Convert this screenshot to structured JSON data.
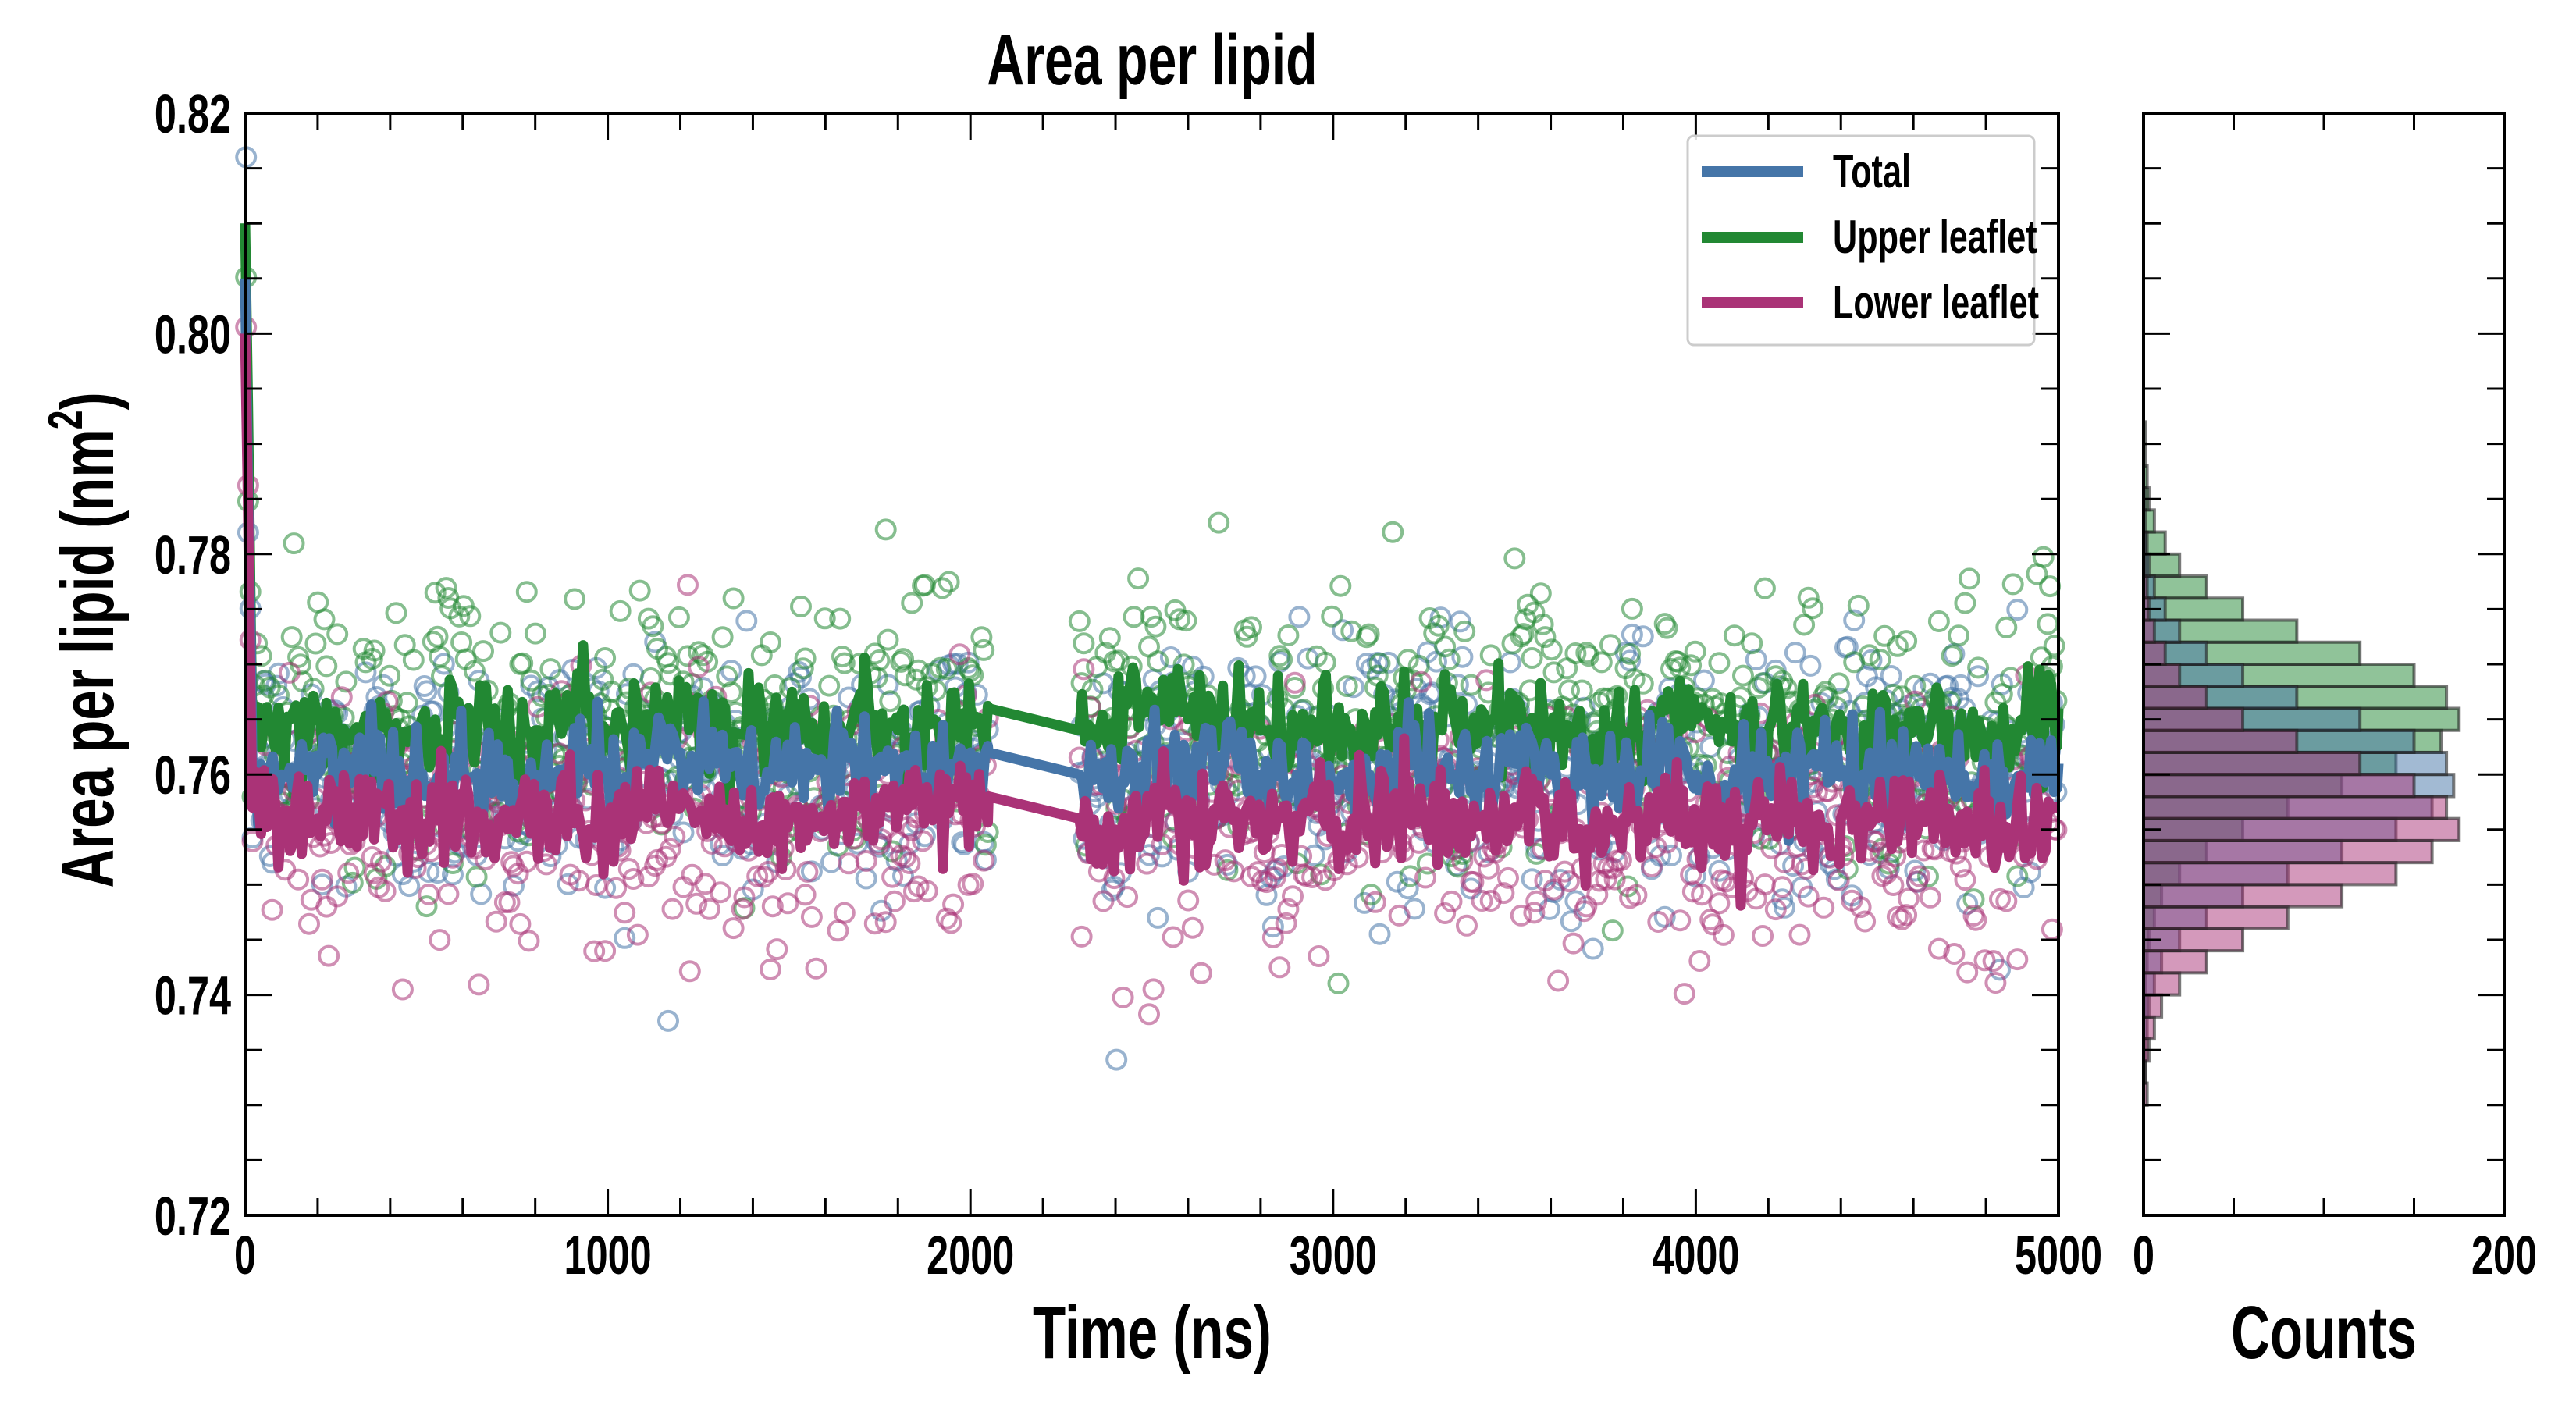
{
  "chart_data": [
    {
      "type": "line",
      "title": "Area per lipid",
      "xlabel": "Time (ns)",
      "ylabel": "Area per lipid (nm",
      "ylabel_sup": "2",
      "ylabel_close": ")",
      "xlim": [
        0,
        5000
      ],
      "ylim": [
        0.72,
        0.82
      ],
      "xticks": [
        0,
        1000,
        2000,
        3000,
        4000,
        5000
      ],
      "xtick_labels": [
        "0",
        "1000",
        "2000",
        "3000",
        "4000",
        "5000"
      ],
      "yticks": [
        0.72,
        0.74,
        0.76,
        0.78,
        0.8,
        0.82
      ],
      "ytick_labels": [
        "0.72",
        "0.74",
        "0.76",
        "0.78",
        "0.80",
        "0.82"
      ],
      "legend_position": "top-right",
      "x": [
        0,
        20,
        100,
        200,
        300,
        400,
        500,
        600,
        700,
        800,
        900,
        1000,
        1100,
        1200,
        1300,
        1400,
        1500,
        1600,
        1700,
        1800,
        1900,
        2000,
        2050,
        2300,
        2400,
        2500,
        2600,
        2700,
        2800,
        2900,
        3000,
        3100,
        3200,
        3300,
        3400,
        3500,
        3600,
        3700,
        3800,
        3900,
        4000,
        4100,
        4200,
        4300,
        4400,
        4500,
        4600,
        4700,
        4800,
        4900,
        5000
      ],
      "series": [
        {
          "name": "Total",
          "color": "#4575a8",
          "values": [
            0.805,
            0.761,
            0.76,
            0.76,
            0.761,
            0.76,
            0.759,
            0.761,
            0.76,
            0.76,
            0.761,
            0.76,
            0.761,
            0.762,
            0.761,
            0.76,
            0.761,
            0.76,
            0.761,
            0.76,
            0.761,
            0.762,
            0.762,
            0.76,
            0.759,
            0.762,
            0.76,
            0.761,
            0.76,
            0.76,
            0.759,
            0.76,
            0.761,
            0.76,
            0.76,
            0.761,
            0.76,
            0.759,
            0.76,
            0.761,
            0.76,
            0.759,
            0.76,
            0.761,
            0.76,
            0.76,
            0.761,
            0.76,
            0.759,
            0.76,
            0.761
          ]
        },
        {
          "name": "Upper leaflet",
          "color": "#228833",
          "values": [
            0.81,
            0.764,
            0.764,
            0.765,
            0.764,
            0.764,
            0.763,
            0.765,
            0.764,
            0.764,
            0.765,
            0.764,
            0.765,
            0.766,
            0.765,
            0.764,
            0.765,
            0.764,
            0.765,
            0.764,
            0.765,
            0.766,
            0.766,
            0.764,
            0.764,
            0.767,
            0.765,
            0.765,
            0.764,
            0.764,
            0.764,
            0.764,
            0.765,
            0.764,
            0.764,
            0.765,
            0.764,
            0.763,
            0.764,
            0.765,
            0.765,
            0.763,
            0.764,
            0.765,
            0.764,
            0.764,
            0.765,
            0.764,
            0.763,
            0.764,
            0.766
          ]
        },
        {
          "name": "Lower leaflet",
          "color": "#aa3377",
          "values": [
            0.8,
            0.757,
            0.756,
            0.756,
            0.757,
            0.756,
            0.755,
            0.757,
            0.756,
            0.756,
            0.757,
            0.756,
            0.757,
            0.757,
            0.756,
            0.755,
            0.756,
            0.756,
            0.757,
            0.756,
            0.757,
            0.758,
            0.758,
            0.756,
            0.755,
            0.757,
            0.756,
            0.756,
            0.756,
            0.756,
            0.755,
            0.756,
            0.757,
            0.756,
            0.756,
            0.757,
            0.756,
            0.755,
            0.756,
            0.756,
            0.756,
            0.754,
            0.756,
            0.757,
            0.756,
            0.756,
            0.757,
            0.756,
            0.755,
            0.756,
            0.757
          ]
        }
      ],
      "scatter_spread_sd": 0.007
    },
    {
      "type": "bar",
      "orientation": "horizontal",
      "xlabel": "Counts",
      "xlim": [
        0,
        200
      ],
      "xtick_labels": [
        "0",
        "200"
      ],
      "ylim": [
        0.72,
        0.82
      ],
      "bin_centers": [
        0.731,
        0.733,
        0.735,
        0.737,
        0.739,
        0.741,
        0.743,
        0.745,
        0.747,
        0.749,
        0.751,
        0.753,
        0.755,
        0.757,
        0.759,
        0.761,
        0.763,
        0.765,
        0.767,
        0.769,
        0.771,
        0.773,
        0.775,
        0.777,
        0.779,
        0.781,
        0.783,
        0.785,
        0.787,
        0.789,
        0.791,
        0.793
      ],
      "series": [
        {
          "name": "Upper leaflet",
          "color": "#228833",
          "values": [
            0,
            0,
            0,
            0,
            1,
            1,
            2,
            3,
            6,
            10,
            20,
            35,
            55,
            80,
            110,
            140,
            165,
            175,
            168,
            150,
            120,
            85,
            55,
            35,
            20,
            12,
            6,
            3,
            2,
            1,
            1,
            0
          ]
        },
        {
          "name": "Total",
          "color": "#4575a8",
          "values": [
            0,
            1,
            1,
            2,
            3,
            6,
            10,
            20,
            35,
            55,
            80,
            110,
            140,
            160,
            172,
            168,
            150,
            120,
            85,
            55,
            35,
            20,
            12,
            6,
            3,
            2,
            1,
            1,
            0,
            0,
            0,
            0
          ]
        },
        {
          "name": "Lower leaflet",
          "color": "#aa3377",
          "values": [
            2,
            1,
            3,
            6,
            10,
            20,
            35,
            55,
            80,
            110,
            140,
            160,
            175,
            168,
            150,
            120,
            85,
            55,
            35,
            20,
            12,
            6,
            3,
            2,
            1,
            1,
            0,
            0,
            0,
            0,
            0,
            0
          ]
        }
      ]
    }
  ]
}
